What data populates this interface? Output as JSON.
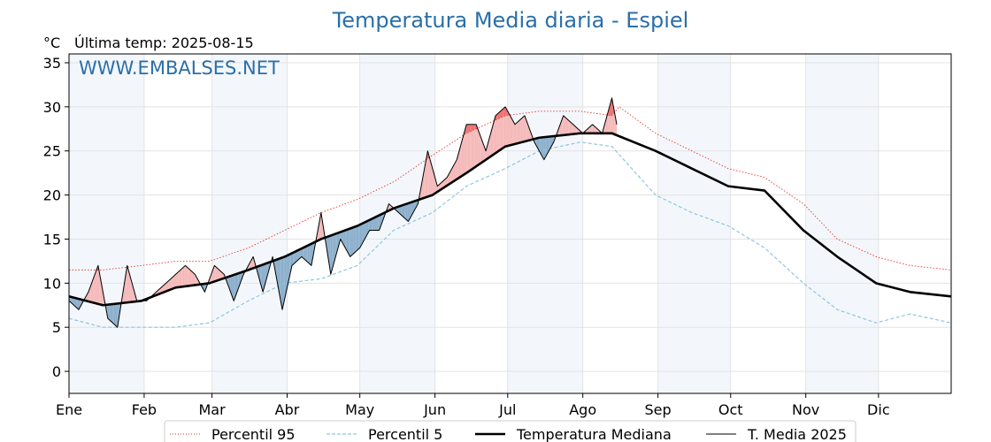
{
  "title": "Temperatura Media diaria - Espiel",
  "unit": "°C",
  "last_temp": "Última temp: 2025-08-15",
  "watermark": "WWW.EMBALSES.NET",
  "chart_data": {
    "type": "line",
    "title": "Temperatura Media diaria - Espiel",
    "ylabel": "°C",
    "ylim": [
      -2.5,
      36
    ],
    "yticks": [
      0,
      5,
      10,
      15,
      20,
      25,
      30,
      35
    ],
    "xlim": [
      1,
      365
    ],
    "months": [
      "Ene",
      "Feb",
      "Mar",
      "Abr",
      "May",
      "Jun",
      "Jul",
      "Ago",
      "Sep",
      "Oct",
      "Nov",
      "Dic"
    ],
    "month_start_days": [
      1,
      32,
      60,
      91,
      121,
      152,
      182,
      213,
      244,
      274,
      305,
      335
    ],
    "shaded_months": [
      0,
      2,
      4,
      6,
      8,
      10
    ],
    "grid": true,
    "legend_position": "bottom",
    "series": [
      {
        "name": "Percentil 95",
        "style": "dotted",
        "color": "#e8382a",
        "x": [
          1,
          15,
          31,
          45,
          59,
          75,
          90,
          105,
          120,
          135,
          151,
          165,
          181,
          195,
          212,
          225,
          228,
          243,
          258,
          273,
          288,
          304,
          318,
          334,
          348,
          365
        ],
        "values": [
          11.5,
          11.5,
          12,
          12.5,
          12.5,
          14,
          16,
          18,
          19.5,
          21.5,
          24.5,
          27,
          29,
          29.5,
          29.5,
          29,
          30,
          27,
          25,
          23,
          22,
          19,
          15,
          13,
          12,
          11.5
        ]
      },
      {
        "name": "Percentil 5",
        "style": "dashed",
        "color": "#8fc6de",
        "x": [
          1,
          15,
          31,
          45,
          59,
          75,
          90,
          105,
          120,
          135,
          151,
          165,
          181,
          195,
          212,
          225,
          243,
          258,
          273,
          288,
          304,
          318,
          334,
          348,
          365
        ],
        "values": [
          6,
          5,
          5,
          5,
          5.5,
          8,
          10,
          10.5,
          12,
          16,
          18,
          21,
          23,
          25,
          26,
          25.5,
          20,
          18,
          16.5,
          14,
          10,
          7,
          5.5,
          6.5,
          5.5
        ]
      },
      {
        "name": "Temperatura Mediana",
        "style": "thick",
        "color": "#000000",
        "x": [
          1,
          15,
          31,
          45,
          59,
          75,
          90,
          105,
          120,
          135,
          151,
          165,
          181,
          195,
          212,
          225,
          243,
          258,
          273,
          288,
          304,
          318,
          334,
          348,
          365
        ],
        "values": [
          8.5,
          7.5,
          8,
          9.5,
          10,
          11.5,
          13,
          15,
          16.5,
          18.5,
          20,
          22.5,
          25.5,
          26.5,
          27,
          27,
          25,
          23,
          21,
          20.5,
          16,
          13,
          10,
          9,
          8.5
        ]
      },
      {
        "name": "T. Media 2025",
        "style": "thin",
        "color": "#000000",
        "x": [
          1,
          5,
          9,
          13,
          17,
          21,
          25,
          29,
          33,
          37,
          41,
          45,
          49,
          53,
          57,
          61,
          65,
          69,
          73,
          77,
          81,
          85,
          89,
          93,
          97,
          101,
          105,
          109,
          113,
          117,
          121,
          125,
          129,
          133,
          137,
          141,
          145,
          149,
          153,
          157,
          161,
          165,
          169,
          173,
          177,
          181,
          185,
          189,
          193,
          197,
          201,
          205,
          209,
          213,
          217,
          221,
          225,
          227
        ],
        "values": [
          8,
          7,
          9,
          12,
          6,
          5,
          12,
          8,
          8,
          9,
          10,
          11,
          12,
          11,
          9,
          12,
          11,
          8,
          11,
          13,
          9,
          13,
          7,
          12,
          13,
          12,
          18,
          11,
          15,
          13,
          14,
          16,
          16,
          19,
          18,
          17,
          19,
          25,
          21,
          22,
          24,
          28,
          28,
          25,
          29,
          30,
          28,
          29,
          26,
          24,
          26,
          29,
          28,
          27,
          28,
          27,
          31,
          28
        ]
      }
    ]
  },
  "legend": {
    "p95": "Percentil 95",
    "p5": "Percentil 5",
    "mediana": "Temperatura Mediana",
    "media2025": "T. Media 2025"
  }
}
